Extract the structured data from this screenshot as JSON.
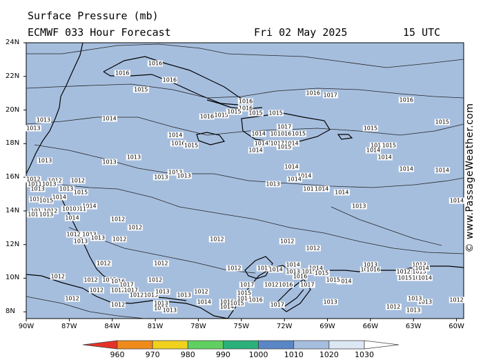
{
  "header": {
    "title_line1": "Surface Pressure (mb)",
    "title_line2": "ECMWF 033 Hour Forecast",
    "date": "Fri 02 May 2025",
    "time": "15 UTC"
  },
  "copyright": "© www.PassageWeather.com",
  "map": {
    "ocean_color": "#a6bede",
    "land_color": "#a6bede",
    "lat_labels": [
      "24N",
      "22N",
      "20N",
      "18N",
      "16N",
      "14N",
      "12N",
      "10N",
      "8N"
    ],
    "lon_labels": [
      "90W",
      "87W",
      "84W",
      "81W",
      "78W",
      "75W",
      "72W",
      "69W",
      "66W",
      "63W",
      "60W"
    ]
  },
  "isobar_labels": [
    {
      "t": "1016",
      "lat": 22.75,
      "lon": -81.0
    },
    {
      "t": "1016",
      "lat": 22.2,
      "lon": -83.3
    },
    {
      "t": "1016",
      "lat": 21.8,
      "lon": -80.0
    },
    {
      "t": "1015",
      "lat": 21.2,
      "lon": -82.0
    },
    {
      "t": "1016",
      "lat": 21.0,
      "lon": -70.0
    },
    {
      "t": "1017",
      "lat": 20.9,
      "lon": -68.8
    },
    {
      "t": "1016",
      "lat": 20.6,
      "lon": -63.5
    },
    {
      "t": "1016",
      "lat": 20.5,
      "lon": -74.7
    },
    {
      "t": "1016",
      "lat": 20.1,
      "lon": -74.7
    },
    {
      "t": "1015",
      "lat": 19.7,
      "lon": -76.4
    },
    {
      "t": "1015",
      "lat": 19.9,
      "lon": -75.5
    },
    {
      "t": "1015",
      "lat": 19.8,
      "lon": -74.0
    },
    {
      "t": "1015",
      "lat": 19.8,
      "lon": -72.6
    },
    {
      "t": "1016",
      "lat": 19.6,
      "lon": -77.4
    },
    {
      "t": "1014",
      "lat": 19.5,
      "lon": -84.2
    },
    {
      "t": "1013",
      "lat": 19.4,
      "lon": -88.8
    },
    {
      "t": "1013",
      "lat": 18.9,
      "lon": -89.5
    },
    {
      "t": "1015",
      "lat": 19.3,
      "lon": -61.0
    },
    {
      "t": "1017",
      "lat": 19.0,
      "lon": -72.0
    },
    {
      "t": "1015",
      "lat": 18.9,
      "lon": -66.0
    },
    {
      "t": "1014",
      "lat": 18.6,
      "lon": -73.8
    },
    {
      "t": "1014",
      "lat": 18.6,
      "lon": -72.5
    },
    {
      "t": "1016",
      "lat": 18.6,
      "lon": -72.0
    },
    {
      "t": "1015",
      "lat": 18.6,
      "lon": -71.0
    },
    {
      "t": "1014",
      "lat": 18.5,
      "lon": -79.6
    },
    {
      "t": "1016",
      "lat": 18.0,
      "lon": -79.4
    },
    {
      "t": "1015",
      "lat": 17.9,
      "lon": -78.5
    },
    {
      "t": "1014",
      "lat": 18.0,
      "lon": -73.6
    },
    {
      "t": "1017",
      "lat": 18.0,
      "lon": -72.5
    },
    {
      "t": "1014",
      "lat": 18.0,
      "lon": -71.5
    },
    {
      "t": "1014",
      "lat": 17.6,
      "lon": -74.0
    },
    {
      "t": "1015",
      "lat": 17.8,
      "lon": -72.0
    },
    {
      "t": "1015",
      "lat": 17.9,
      "lon": -65.5
    },
    {
      "t": "1014",
      "lat": 17.6,
      "lon": -65.8
    },
    {
      "t": "1015",
      "lat": 17.9,
      "lon": -64.7
    },
    {
      "t": "1013",
      "lat": 17.2,
      "lon": -82.5
    },
    {
      "t": "1013",
      "lat": 16.9,
      "lon": -84.2
    },
    {
      "t": "1013",
      "lat": 17.0,
      "lon": -88.7
    },
    {
      "t": "1014",
      "lat": 17.2,
      "lon": -65.0
    },
    {
      "t": "1014",
      "lat": 16.6,
      "lon": -71.5
    },
    {
      "t": "1014",
      "lat": 16.5,
      "lon": -63.5
    },
    {
      "t": "1014",
      "lat": 16.4,
      "lon": -61.0
    },
    {
      "t": "1013",
      "lat": 16.3,
      "lon": -79.6
    },
    {
      "t": "1013",
      "lat": 16.1,
      "lon": -79.0
    },
    {
      "t": "1013",
      "lat": 16.0,
      "lon": -80.6
    },
    {
      "t": "1014",
      "lat": 16.1,
      "lon": -70.6
    },
    {
      "t": "1014",
      "lat": 15.9,
      "lon": -71.3
    },
    {
      "t": "1013",
      "lat": 15.6,
      "lon": -72.8
    },
    {
      "t": "1012",
      "lat": 15.9,
      "lon": -89.5
    },
    {
      "t": "1012",
      "lat": 15.8,
      "lon": -88.0
    },
    {
      "t": "1012",
      "lat": 15.8,
      "lon": -86.4
    },
    {
      "t": "1013",
      "lat": 15.6,
      "lon": -88.4
    },
    {
      "t": "1011",
      "lat": 15.6,
      "lon": -89.4
    },
    {
      "t": "1013",
      "lat": 15.3,
      "lon": -89.2
    },
    {
      "t": "1013",
      "lat": 15.3,
      "lon": -87.2
    },
    {
      "t": "1015",
      "lat": 15.1,
      "lon": -86.2
    },
    {
      "t": "1011",
      "lat": 15.3,
      "lon": -70.2
    },
    {
      "t": "1014",
      "lat": 15.3,
      "lon": -69.4
    },
    {
      "t": "1014",
      "lat": 15.1,
      "lon": -68.0
    },
    {
      "t": "1014",
      "lat": 14.8,
      "lon": -87.7
    },
    {
      "t": "1015",
      "lat": 14.7,
      "lon": -89.3
    },
    {
      "t": "1015",
      "lat": 14.6,
      "lon": -88.6
    },
    {
      "t": "1014",
      "lat": 14.6,
      "lon": -59.8
    },
    {
      "t": "1013",
      "lat": 14.3,
      "lon": -66.8
    },
    {
      "t": "1014",
      "lat": 14.3,
      "lon": -85.6
    },
    {
      "t": "1011",
      "lat": 14.1,
      "lon": -86.3
    },
    {
      "t": "1013",
      "lat": 14.0,
      "lon": -89.2
    },
    {
      "t": "1012",
      "lat": 14.0,
      "lon": -88.3
    },
    {
      "t": "1010",
      "lat": 14.1,
      "lon": -87.0
    },
    {
      "t": "1013",
      "lat": 13.8,
      "lon": -89.4
    },
    {
      "t": "1013",
      "lat": 13.8,
      "lon": -88.6
    },
    {
      "t": "1014",
      "lat": 13.6,
      "lon": -86.8
    },
    {
      "t": "1012",
      "lat": 13.5,
      "lon": -83.6
    },
    {
      "t": "1012",
      "lat": 13.0,
      "lon": -82.4
    },
    {
      "t": "1012",
      "lat": 12.6,
      "lon": -86.7
    },
    {
      "t": "1013",
      "lat": 12.6,
      "lon": -85.6
    },
    {
      "t": "1013",
      "lat": 12.4,
      "lon": -85.0
    },
    {
      "t": "1013",
      "lat": 12.2,
      "lon": -86.2
    },
    {
      "t": "1012",
      "lat": 12.3,
      "lon": -83.5
    },
    {
      "t": "1012",
      "lat": 12.3,
      "lon": -76.7
    },
    {
      "t": "1012",
      "lat": 12.2,
      "lon": -71.8
    },
    {
      "t": "1012",
      "lat": 11.8,
      "lon": -70.0
    },
    {
      "t": "1013",
      "lat": 10.8,
      "lon": -66.0
    },
    {
      "t": "1013",
      "lat": 10.8,
      "lon": -62.6
    },
    {
      "t": "1012",
      "lat": 10.9,
      "lon": -84.6
    },
    {
      "t": "1012",
      "lat": 10.9,
      "lon": -80.6
    },
    {
      "t": "1012",
      "lat": 10.6,
      "lon": -73.4
    },
    {
      "t": "1013",
      "lat": 10.4,
      "lon": -71.4
    },
    {
      "t": "1014",
      "lat": 10.8,
      "lon": -71.4
    },
    {
      "t": "1012",
      "lat": 10.6,
      "lon": -75.5
    },
    {
      "t": "1014",
      "lat": 10.5,
      "lon": -72.6
    },
    {
      "t": "1014",
      "lat": 10.6,
      "lon": -69.8
    },
    {
      "t": "1015",
      "lat": 10.4,
      "lon": -70.3
    },
    {
      "t": "1015",
      "lat": 10.3,
      "lon": -69.4
    },
    {
      "t": "1015",
      "lat": 10.5,
      "lon": -66.2
    },
    {
      "t": "1016",
      "lat": 10.5,
      "lon": -65.8
    },
    {
      "t": "1012",
      "lat": 10.4,
      "lon": -63.7
    },
    {
      "t": "1013",
      "lat": 10.4,
      "lon": -62.6
    },
    {
      "t": "1013",
      "lat": 10.0,
      "lon": -62.6
    },
    {
      "t": "1015",
      "lat": 10.0,
      "lon": -63.6
    },
    {
      "t": "1016",
      "lat": 10.1,
      "lon": -70.9
    },
    {
      "t": "1014",
      "lat": 9.8,
      "lon": -67.8
    },
    {
      "t": "1015",
      "lat": 9.9,
      "lon": -68.6
    },
    {
      "t": "1015",
      "lat": 9.9,
      "lon": -84.2
    },
    {
      "t": "1012",
      "lat": 9.9,
      "lon": -85.5
    },
    {
      "t": "1012",
      "lat": 9.9,
      "lon": -81.0
    },
    {
      "t": "1012",
      "lat": 10.1,
      "lon": -87.8
    },
    {
      "t": "1016",
      "lat": 9.8,
      "lon": -83.6
    },
    {
      "t": "1017",
      "lat": 9.6,
      "lon": -83.0
    },
    {
      "t": "1017",
      "lat": 9.6,
      "lon": -74.6
    },
    {
      "t": "1015",
      "lat": 9.1,
      "lon": -74.8
    },
    {
      "t": "1012",
      "lat": 9.6,
      "lon": -72.9
    },
    {
      "t": "1016",
      "lat": 9.6,
      "lon": -71.9
    },
    {
      "t": "1017",
      "lat": 9.6,
      "lon": -70.4
    },
    {
      "t": "1014",
      "lat": 8.8,
      "lon": -74.8
    },
    {
      "t": "1012",
      "lat": 9.3,
      "lon": -83.6
    },
    {
      "t": "1017",
      "lat": 9.3,
      "lon": -82.7
    },
    {
      "t": "1015",
      "lat": 9.0,
      "lon": -81.3
    },
    {
      "t": "1012",
      "lat": 9.0,
      "lon": -82.3
    },
    {
      "t": "1013",
      "lat": 9.2,
      "lon": -80.5
    },
    {
      "t": "1012",
      "lat": 9.2,
      "lon": -77.8
    },
    {
      "t": "1013",
      "lat": 9.0,
      "lon": -79.0
    },
    {
      "t": "1013",
      "lat": 8.5,
      "lon": -80.6
    },
    {
      "t": "1014",
      "lat": 8.6,
      "lon": -77.6
    },
    {
      "t": "1013",
      "lat": 8.6,
      "lon": -76.0
    },
    {
      "t": "1014",
      "lat": 8.3,
      "lon": -76.0
    },
    {
      "t": "1015",
      "lat": 8.5,
      "lon": -75.3
    },
    {
      "t": "1016",
      "lat": 8.7,
      "lon": -74.0
    },
    {
      "t": "1017",
      "lat": 8.4,
      "lon": -72.5
    },
    {
      "t": "1013",
      "lat": 8.6,
      "lon": -68.8
    },
    {
      "t": "1012",
      "lat": 8.3,
      "lon": -64.4
    },
    {
      "t": "1013",
      "lat": 8.1,
      "lon": -63.0
    },
    {
      "t": "1013",
      "lat": 8.6,
      "lon": -62.2
    },
    {
      "t": "1012",
      "lat": 8.7,
      "lon": -60.0
    },
    {
      "t": "1012",
      "lat": 8.4,
      "lon": -83.6
    },
    {
      "t": "1014",
      "lat": 8.2,
      "lon": -80.6
    },
    {
      "t": "1013",
      "lat": 8.1,
      "lon": -80.0
    },
    {
      "t": "1013",
      "lat": 8.8,
      "lon": -62.9
    },
    {
      "t": "1014",
      "lat": 10.6,
      "lon": -62.4
    },
    {
      "t": "1014",
      "lat": 10.0,
      "lon": -62.2
    },
    {
      "t": "1012",
      "lat": 8.8,
      "lon": -86.8
    },
    {
      "t": "1012",
      "lat": 9.3,
      "lon": -85.1
    }
  ],
  "colorbar": {
    "labels": [
      "960",
      "970",
      "980",
      "990",
      "1000",
      "1010",
      "1020",
      "1030"
    ],
    "colors": [
      "#e63226",
      "#f08a1a",
      "#f0d21e",
      "#60d060",
      "#2ab07a",
      "#5a86c6",
      "#a6bede",
      "#dde7f4",
      "#ffffff"
    ]
  }
}
